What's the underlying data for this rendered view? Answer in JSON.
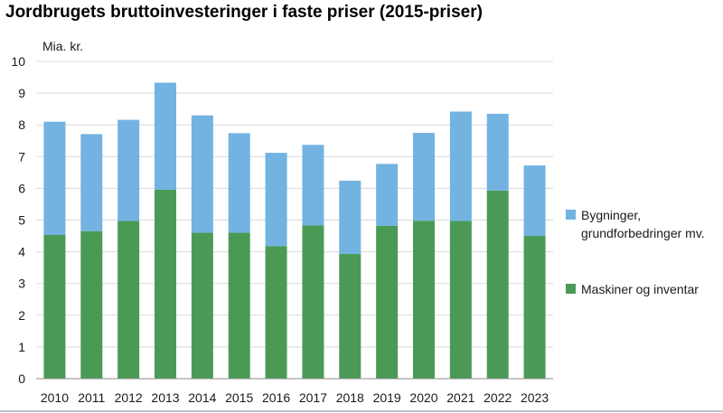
{
  "chart_data": {
    "type": "bar",
    "stacked": true,
    "title": "Jordbrugets bruttoinvesteringer i faste priser (2015-priser)",
    "ylabel": "Mia. kr.",
    "xlabel": "",
    "ylim": [
      0,
      10
    ],
    "yticks": [
      0,
      1,
      2,
      3,
      4,
      5,
      6,
      7,
      8,
      9,
      10
    ],
    "grid": true,
    "legend_position": "right",
    "categories": [
      "2010",
      "2011",
      "2012",
      "2013",
      "2014",
      "2015",
      "2016",
      "2017",
      "2018",
      "2019",
      "2020",
      "2021",
      "2022",
      "2023"
    ],
    "series": [
      {
        "name": "Maskiner og inventar",
        "color": "#4a9a55",
        "values": [
          4.53,
          4.65,
          4.97,
          5.96,
          4.6,
          4.6,
          4.18,
          4.83,
          3.93,
          4.82,
          4.98,
          4.97,
          5.93,
          4.5
        ]
      },
      {
        "name_lines": [
          "Bygninger,",
          "grundforbedringer mv."
        ],
        "color": "#72b3e2",
        "values": [
          3.57,
          3.06,
          3.19,
          3.37,
          3.7,
          3.14,
          2.94,
          2.54,
          2.31,
          1.95,
          2.77,
          3.45,
          2.42,
          2.22
        ]
      }
    ]
  }
}
